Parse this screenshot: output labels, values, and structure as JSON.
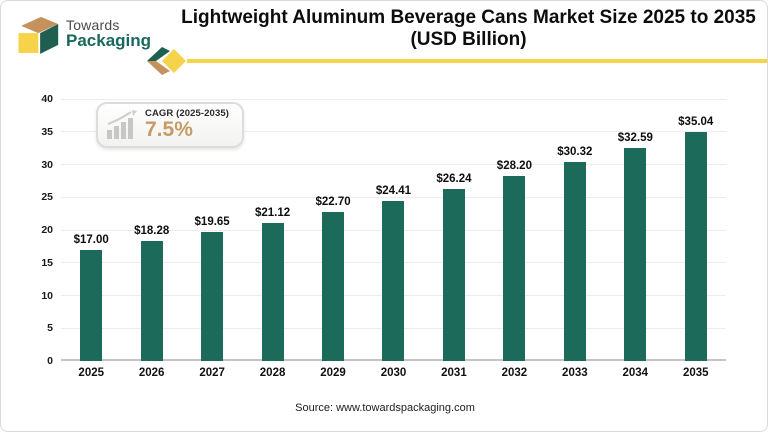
{
  "brand": {
    "name_top": "Towards",
    "name_bottom": "Packaging"
  },
  "header": {
    "title_line1": "Lightweight Aluminum Beverage Cans Market Size 2025 to 2035",
    "title_line2": "(USD Billion)"
  },
  "badge": {
    "label": "CAGR (2025-2035)",
    "value": "7.5%"
  },
  "footer": {
    "source": "Source: www.towardspackaging.com"
  },
  "colors": {
    "bar": "#1b6a5a",
    "accent_yellow": "#f5d34b",
    "accent_tan": "#c5925e",
    "brand_green": "#17695c",
    "cagr_value": "#c79b66",
    "gridline": "#ececec",
    "axis_line": "#c4c4c4"
  },
  "chart_data": {
    "type": "bar",
    "title": "Lightweight Aluminum Beverage Cans Market Size 2025 to 2035 (USD Billion)",
    "categories": [
      "2025",
      "2026",
      "2027",
      "2028",
      "2029",
      "2030",
      "2031",
      "2032",
      "2033",
      "2034",
      "2035"
    ],
    "values": [
      17.0,
      18.28,
      19.65,
      21.12,
      22.7,
      24.41,
      26.24,
      28.2,
      30.32,
      32.59,
      35.04
    ],
    "bar_labels": [
      "$17.00",
      "$18.28",
      "$19.65",
      "$21.12",
      "$22.70",
      "$24.41",
      "$26.24",
      "$28.20",
      "$30.32",
      "$32.59",
      "$35.04"
    ],
    "xlabel": "",
    "ylabel": "",
    "ylim": [
      0,
      40
    ],
    "yticks": [
      0,
      5,
      10,
      15,
      20,
      25,
      30,
      35,
      40
    ],
    "grid": true,
    "legend": "none"
  }
}
